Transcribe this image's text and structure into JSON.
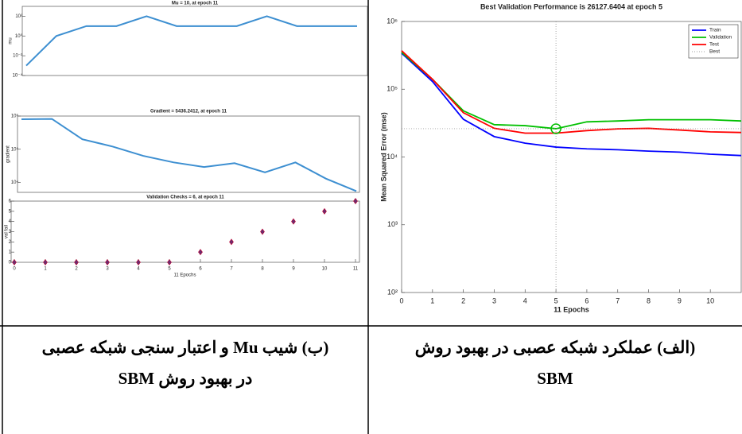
{
  "chart_data": [
    {
      "type": "line",
      "title": "Best Validation Performance is 26127.6404 at epoch 5",
      "xlabel": "11 Epochs",
      "ylabel": "Mean Squared Error  (mse)",
      "x": [
        0,
        1,
        2,
        3,
        4,
        5,
        6,
        7,
        8,
        9,
        10,
        11
      ],
      "xlim": [
        0,
        11
      ],
      "xticks": [
        0,
        1,
        2,
        3,
        4,
        5,
        6,
        7,
        8,
        9,
        10
      ],
      "yscale": "log",
      "ylim": [
        100,
        1000000
      ],
      "yticks": [
        {
          "value": 100,
          "label": "10²"
        },
        {
          "value": 1000,
          "label": "10³"
        },
        {
          "value": 10000,
          "label": "10⁴"
        },
        {
          "value": 100000,
          "label": "10⁵"
        },
        {
          "value": 1000000,
          "label": "10⁶"
        }
      ],
      "legend": "upper right",
      "series": [
        {
          "name": "Train",
          "color": "#0000ff",
          "values": [
            340000,
            130000,
            36000,
            20000,
            16000,
            14000,
            13200,
            12800,
            12200,
            11800,
            11000,
            10500
          ]
        },
        {
          "name": "Validation",
          "color": "#00c000",
          "values": [
            350000,
            140000,
            48000,
            30000,
            29000,
            26127.6404,
            33000,
            34000,
            35500,
            35500,
            35500,
            34000
          ]
        },
        {
          "name": "Test",
          "color": "#ff0000",
          "values": [
            370000,
            140000,
            45000,
            26500,
            22500,
            22500,
            24500,
            26000,
            26500,
            25000,
            23500,
            23000
          ]
        }
      ],
      "best": {
        "name": "Best",
        "color": "#808080",
        "x": 5,
        "y": 26127.6404
      }
    },
    {
      "type": "line",
      "title": "Mu = 10, at epoch 11",
      "ylabel": "mu",
      "x": [
        0,
        1,
        2,
        3,
        4,
        5,
        6,
        7,
        8,
        9,
        10,
        11
      ],
      "xlim": [
        0,
        11
      ],
      "yscale": "log",
      "ylim": [
        0.0001,
        1000
      ],
      "yticks": [
        {
          "value": 0.0001,
          "label": "10⁻⁴"
        },
        {
          "value": 0.01,
          "label": "10⁻²"
        },
        {
          "value": 1,
          "label": "10⁰"
        },
        {
          "value": 100,
          "label": "10²"
        }
      ],
      "color": "#3d8fd1",
      "values": [
        0.001,
        1,
        10,
        10,
        100,
        10,
        10,
        10,
        100,
        10,
        10,
        10
      ]
    },
    {
      "type": "line",
      "title": "Gradient = 5436.2412, at epoch 11",
      "ylabel": "gradient",
      "x": [
        0,
        1,
        2,
        3,
        4,
        5,
        6,
        7,
        8,
        9,
        10,
        11
      ],
      "xlim": [
        0,
        11
      ],
      "yscale": "log",
      "ylim": [
        5000,
        1000000
      ],
      "yticks": [
        {
          "value": 10000,
          "label": "10⁴"
        },
        {
          "value": 100000,
          "label": "10⁵"
        },
        {
          "value": 1000000,
          "label": "10⁶"
        }
      ],
      "color": "#3d8fd1",
      "values": [
        800000,
        820000,
        200000,
        120000,
        63000,
        40000,
        29000,
        38000,
        20000,
        40000,
        13000,
        5436.2412
      ]
    },
    {
      "type": "scatter",
      "title": "Validation Checks = 6, at epoch 11",
      "xlabel": "11 Epochs",
      "ylabel": "val fail",
      "x": [
        0,
        1,
        2,
        3,
        4,
        5,
        6,
        7,
        8,
        9,
        10,
        11
      ],
      "xlim": [
        0,
        11
      ],
      "xticks": [
        0,
        1,
        2,
        3,
        4,
        5,
        6,
        7,
        8,
        9,
        10,
        11
      ],
      "ylim": [
        0,
        6
      ],
      "yticks": [
        0,
        1,
        2,
        3,
        4,
        5,
        6
      ],
      "color": "#6a2c70",
      "values": [
        0,
        0,
        0,
        0,
        0,
        0,
        1,
        2,
        3,
        4,
        5,
        6
      ]
    }
  ],
  "captions": {
    "right": [
      "(الف) عملکرد شبکه عصبی در بهبود روش",
      "SBM"
    ],
    "left": [
      "(ب) شیب Mu و اعتبار سنجی شبکه عصبی",
      "در بهبود روش SBM"
    ]
  }
}
